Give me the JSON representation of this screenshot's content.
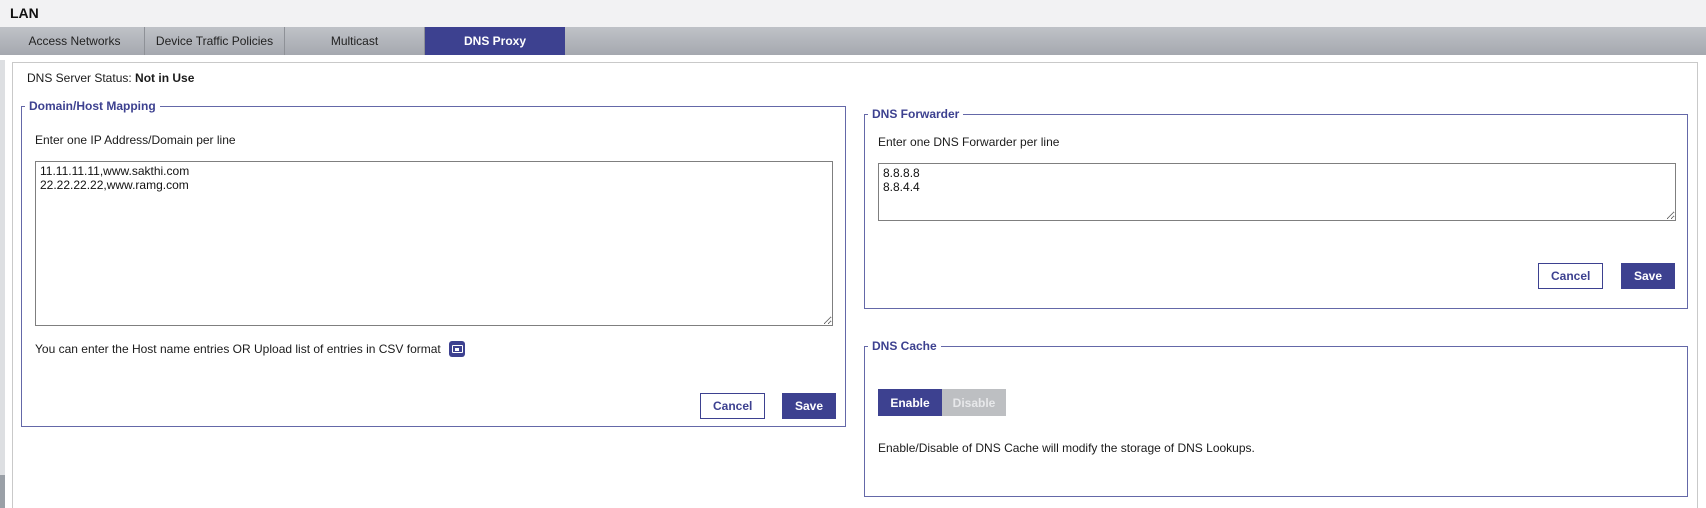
{
  "page": {
    "title": "LAN"
  },
  "tabs": [
    {
      "label": "Access Networks",
      "active": false
    },
    {
      "label": "Device Traffic Policies",
      "active": false
    },
    {
      "label": "Multicast",
      "active": false
    },
    {
      "label": "DNS Proxy",
      "active": true
    }
  ],
  "status": {
    "label": "DNS Server Status: ",
    "value": "Not in Use"
  },
  "domain_host_mapping": {
    "legend": "Domain/Host Mapping",
    "instruction": "Enter one IP Address/Domain per line",
    "textarea_value": "11.11.11.11,www.sakthi.com\n22.22.22.22,www.ramg.com",
    "csv_note": "You can enter the Host name entries OR Upload list of entries in CSV format",
    "upload_icon": "upload-csv-icon",
    "cancel_label": "Cancel",
    "save_label": "Save"
  },
  "dns_forwarder": {
    "legend": "DNS Forwarder",
    "instruction": "Enter one DNS Forwarder per line",
    "textarea_value": "8.8.8.8\n8.8.4.4",
    "cancel_label": "Cancel",
    "save_label": "Save"
  },
  "dns_cache": {
    "legend": "DNS Cache",
    "enable_label": "Enable",
    "disable_label": "Disable",
    "selected": "Enable",
    "note": "Enable/Disable of DNS Cache will modify the storage of DNS Lookups."
  },
  "colors": {
    "accent": "#3d4190",
    "tabbar_gradient_top": "#bfc2c7",
    "tabbar_gradient_bottom": "#a5a8af",
    "fieldset_border": "#6468a8",
    "disabled_segment_bg": "#bdbfc2",
    "disabled_segment_text": "#e7e8ea"
  }
}
